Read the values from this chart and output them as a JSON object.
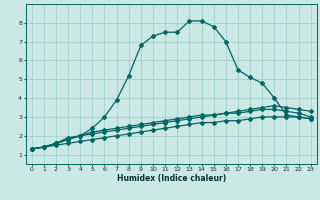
{
  "title": "",
  "xlabel": "Humidex (Indice chaleur)",
  "ylabel": "",
  "bg_color": "#cce8e4",
  "grid_color": "#99ccc6",
  "line_color": "#006666",
  "xlim": [
    -0.5,
    23.5
  ],
  "ylim": [
    0.5,
    9.0
  ],
  "xticks": [
    0,
    1,
    2,
    3,
    4,
    5,
    6,
    7,
    8,
    9,
    10,
    11,
    12,
    13,
    14,
    15,
    16,
    17,
    18,
    19,
    20,
    21,
    22,
    23
  ],
  "yticks": [
    1,
    2,
    3,
    4,
    5,
    6,
    7,
    8
  ],
  "series1_x": [
    0,
    1,
    2,
    3,
    4,
    5,
    6,
    7,
    8,
    9,
    10,
    11,
    12,
    13,
    14,
    15,
    16,
    17,
    18,
    19,
    20,
    21,
    22,
    23
  ],
  "series1_y": [
    1.3,
    1.4,
    1.6,
    1.9,
    2.0,
    2.4,
    3.0,
    3.9,
    5.2,
    6.8,
    7.3,
    7.5,
    7.5,
    8.1,
    8.1,
    7.8,
    7.0,
    5.5,
    5.1,
    4.8,
    4.0,
    3.1,
    3.0,
    2.9
  ],
  "series2_x": [
    0,
    1,
    2,
    3,
    4,
    5,
    6,
    7,
    8,
    9,
    10,
    11,
    12,
    13,
    14,
    15,
    16,
    17,
    18,
    19,
    20,
    21,
    22,
    23
  ],
  "series2_y": [
    1.3,
    1.4,
    1.6,
    1.8,
    2.0,
    2.1,
    2.2,
    2.3,
    2.4,
    2.5,
    2.6,
    2.7,
    2.8,
    2.9,
    3.0,
    3.1,
    3.2,
    3.3,
    3.4,
    3.5,
    3.6,
    3.5,
    3.4,
    3.3
  ],
  "series3_x": [
    0,
    1,
    2,
    3,
    4,
    5,
    6,
    7,
    8,
    9,
    10,
    11,
    12,
    13,
    14,
    15,
    16,
    17,
    18,
    19,
    20,
    21,
    22,
    23
  ],
  "series3_y": [
    1.3,
    1.4,
    1.6,
    1.8,
    2.0,
    2.2,
    2.3,
    2.4,
    2.5,
    2.6,
    2.7,
    2.8,
    2.9,
    3.0,
    3.1,
    3.1,
    3.2,
    3.2,
    3.3,
    3.4,
    3.4,
    3.3,
    3.2,
    3.0
  ],
  "series4_x": [
    0,
    1,
    2,
    3,
    4,
    5,
    6,
    7,
    8,
    9,
    10,
    11,
    12,
    13,
    14,
    15,
    16,
    17,
    18,
    19,
    20,
    21,
    22,
    23
  ],
  "series4_y": [
    1.3,
    1.4,
    1.5,
    1.6,
    1.7,
    1.8,
    1.9,
    2.0,
    2.1,
    2.2,
    2.3,
    2.4,
    2.5,
    2.6,
    2.7,
    2.7,
    2.8,
    2.8,
    2.9,
    3.0,
    3.0,
    3.0,
    3.0,
    2.9
  ]
}
